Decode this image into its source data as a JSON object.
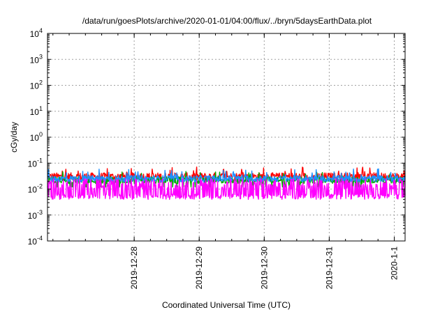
{
  "chart_data": {
    "type": "line",
    "title": "/data/run/goesPlots/archive/2020-01-01/04:00/flux/../bryn/5daysEarthData.plot",
    "xlabel": "Coordinated Universal Time (UTC)",
    "ylabel": "cGy/day",
    "y_scale": "log",
    "ylim_exp": [
      -4,
      4
    ],
    "y_ticks": [
      {
        "base": "10",
        "exp": "-4",
        "e": -4
      },
      {
        "base": "10",
        "exp": "-3",
        "e": -3
      },
      {
        "base": "10",
        "exp": "-2",
        "e": -2
      },
      {
        "base": "10",
        "exp": "-1",
        "e": -1
      },
      {
        "base": "10",
        "exp": "0",
        "e": 0
      },
      {
        "base": "10",
        "exp": "1",
        "e": 1
      },
      {
        "base": "10",
        "exp": "2",
        "e": 2
      },
      {
        "base": "10",
        "exp": "3",
        "e": 3
      },
      {
        "base": "10",
        "exp": "4",
        "e": 4
      }
    ],
    "x_range_days": [
      "2019-12-26T16:00",
      "2020-01-01T04:00"
    ],
    "x_ticks": [
      {
        "label": "2019-12-28",
        "value": "2019-12-28T00:00"
      },
      {
        "label": "2019-12-29",
        "value": "2019-12-29T00:00"
      },
      {
        "label": "2019-12-30",
        "value": "2019-12-30T00:00"
      },
      {
        "label": "2019-12-31",
        "value": "2019-12-31T00:00"
      },
      {
        "label": "2020-1-1",
        "value": "2020-01-01T00:00"
      }
    ],
    "grid": true,
    "series": [
      {
        "color": "#ff0000",
        "base": 0.03,
        "low": 0.028,
        "high": 0.06,
        "noise": 0.35
      },
      {
        "color": "#00aa00",
        "base": 0.022,
        "low": 0.012,
        "high": 0.04,
        "noise": 0.3
      },
      {
        "color": "#1e90ff",
        "base": 0.025,
        "low": 0.018,
        "high": 0.05,
        "noise": 0.3
      },
      {
        "color": "#ff00ff",
        "base": 0.006,
        "low": 0.004,
        "high": 0.025,
        "noise": 0.45
      }
    ]
  }
}
